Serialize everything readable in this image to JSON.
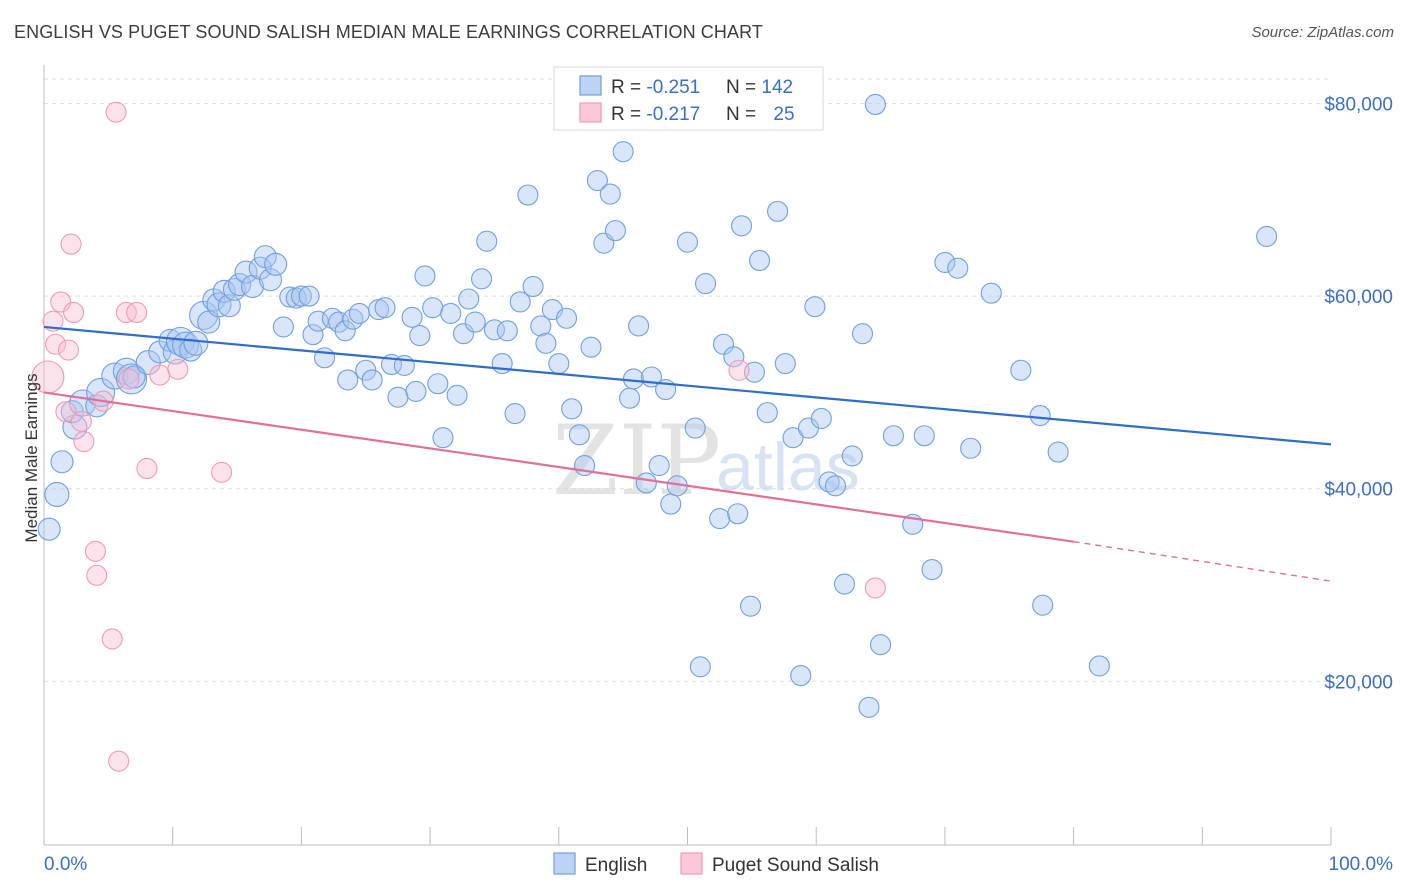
{
  "title": "ENGLISH VS PUGET SOUND SALISH MEDIAN MALE EARNINGS CORRELATION CHART",
  "source": "Source: ZipAtlas.com",
  "watermark": {
    "zip": "ZIP",
    "atlas": "atlas"
  },
  "colors": {
    "english": "#6fa0e0",
    "english_line": "#2f6ccc",
    "salish": "#f19ab7",
    "salish_line": "#e0709a",
    "label": "#3a6fc4"
  },
  "stats": {
    "english": {
      "r_label": "R = ",
      "r": "-0.251",
      "n_label": "N = ",
      "n": "142"
    },
    "salish": {
      "r_label": "R = ",
      "r": "-0.217",
      "n_label": "N = ",
      "n": "25"
    }
  },
  "chart_data": {
    "type": "scatter",
    "ylabel": "Median Male Earnings",
    "xlim": [
      0,
      100
    ],
    "ylim": [
      3000,
      84000
    ],
    "x_tick_labels": [
      "0.0%",
      "100.0%"
    ],
    "y_ticks": [
      {
        "value": 20000,
        "label": "$20,000"
      },
      {
        "value": 40000,
        "label": "$40,000"
      },
      {
        "value": 60000,
        "label": "$60,000"
      },
      {
        "value": 80000,
        "label": "$80,000"
      }
    ],
    "grid": true,
    "legend_position": "bottom-center",
    "series": [
      {
        "name": "English",
        "trend": {
          "x": [
            0,
            100
          ],
          "y": [
            56800,
            44600
          ]
        },
        "points": [
          [
            0.4,
            35800,
            11
          ],
          [
            1.0,
            39400,
            12
          ],
          [
            1.4,
            42800,
            11
          ],
          [
            2.4,
            46400,
            12
          ],
          [
            2.2,
            48000,
            11
          ],
          [
            3.0,
            48900,
            13
          ],
          [
            4.1,
            48600,
            11
          ],
          [
            4.4,
            50000,
            14
          ],
          [
            5.5,
            51700,
            13
          ],
          [
            6.4,
            52200,
            13
          ],
          [
            6.8,
            51400,
            15
          ],
          [
            7.0,
            51600,
            11
          ],
          [
            8.1,
            53100,
            12
          ],
          [
            9.0,
            54200,
            11
          ],
          [
            9.8,
            55400,
            11
          ],
          [
            10.2,
            54200,
            12
          ],
          [
            10.6,
            55300,
            14
          ],
          [
            11.0,
            54900,
            13
          ],
          [
            11.4,
            54400,
            11
          ],
          [
            11.8,
            55100,
            12
          ],
          [
            12.4,
            58000,
            14
          ],
          [
            12.8,
            57300,
            11
          ],
          [
            13.2,
            59600,
            11
          ],
          [
            13.6,
            59100,
            12
          ],
          [
            14.0,
            60500,
            11
          ],
          [
            14.4,
            59000,
            11
          ],
          [
            14.8,
            60700,
            11
          ],
          [
            15.2,
            61200,
            11
          ],
          [
            15.7,
            62500,
            11
          ],
          [
            16.2,
            61000,
            11
          ],
          [
            16.8,
            62900,
            11
          ],
          [
            17.2,
            64100,
            11
          ],
          [
            17.6,
            61700,
            11
          ],
          [
            18.0,
            63300,
            11
          ],
          [
            18.6,
            56800,
            10
          ],
          [
            19.1,
            59900,
            10
          ],
          [
            19.6,
            59800,
            10
          ],
          [
            20.0,
            60000,
            10
          ],
          [
            20.6,
            60000,
            10
          ],
          [
            20.9,
            56000,
            10
          ],
          [
            21.3,
            57400,
            10
          ],
          [
            21.8,
            53600,
            10
          ],
          [
            22.4,
            57700,
            10
          ],
          [
            22.9,
            57300,
            10
          ],
          [
            23.4,
            56400,
            10
          ],
          [
            23.6,
            51300,
            10
          ],
          [
            24.0,
            57600,
            10
          ],
          [
            24.5,
            58200,
            10
          ],
          [
            25.0,
            52300,
            10
          ],
          [
            25.5,
            51300,
            10
          ],
          [
            26.0,
            58600,
            10
          ],
          [
            26.5,
            58800,
            10
          ],
          [
            27.0,
            52900,
            10
          ],
          [
            27.5,
            49500,
            10
          ],
          [
            28.0,
            52800,
            10
          ],
          [
            28.6,
            57800,
            10
          ],
          [
            28.9,
            50100,
            10
          ],
          [
            29.2,
            55900,
            10
          ],
          [
            29.6,
            62100,
            10
          ],
          [
            30.2,
            58800,
            10
          ],
          [
            30.6,
            50900,
            10
          ],
          [
            31.0,
            45300,
            10
          ],
          [
            31.6,
            58200,
            10
          ],
          [
            32.1,
            49700,
            10
          ],
          [
            32.6,
            56100,
            10
          ],
          [
            33.0,
            59700,
            10
          ],
          [
            33.5,
            57300,
            10
          ],
          [
            34.0,
            61800,
            10
          ],
          [
            34.4,
            65700,
            10
          ],
          [
            35.0,
            56500,
            10
          ],
          [
            35.6,
            53000,
            10
          ],
          [
            36.0,
            56400,
            10
          ],
          [
            36.6,
            47800,
            10
          ],
          [
            37.0,
            59400,
            10
          ],
          [
            37.6,
            70500,
            10
          ],
          [
            38.0,
            61000,
            10
          ],
          [
            38.6,
            56900,
            10
          ],
          [
            39.0,
            55100,
            10
          ],
          [
            39.5,
            58600,
            10
          ],
          [
            40.0,
            53000,
            10
          ],
          [
            40.6,
            57700,
            10
          ],
          [
            41.0,
            48300,
            10
          ],
          [
            41.6,
            45600,
            10
          ],
          [
            42.0,
            42400,
            10
          ],
          [
            42.5,
            54700,
            10
          ],
          [
            43.0,
            72000,
            10
          ],
          [
            43.5,
            65500,
            10
          ],
          [
            44.0,
            70600,
            10
          ],
          [
            44.4,
            66800,
            10
          ],
          [
            45.0,
            75000,
            10
          ],
          [
            45.5,
            49400,
            10
          ],
          [
            45.8,
            51400,
            10
          ],
          [
            46.2,
            56900,
            10
          ],
          [
            46.8,
            40600,
            10
          ],
          [
            47.2,
            51600,
            10
          ],
          [
            47.8,
            42400,
            10
          ],
          [
            48.3,
            50300,
            10
          ],
          [
            48.7,
            38400,
            10
          ],
          [
            49.2,
            40300,
            10
          ],
          [
            50.0,
            65600,
            10
          ],
          [
            50.6,
            46300,
            10
          ],
          [
            51.0,
            21500,
            10
          ],
          [
            51.4,
            61300,
            10
          ],
          [
            52.5,
            36900,
            10
          ],
          [
            52.8,
            55000,
            10
          ],
          [
            53.6,
            53700,
            10
          ],
          [
            53.9,
            37400,
            10
          ],
          [
            54.2,
            67300,
            10
          ],
          [
            54.9,
            27800,
            10
          ],
          [
            55.2,
            52100,
            10
          ],
          [
            55.6,
            63700,
            10
          ],
          [
            56.2,
            47900,
            10
          ],
          [
            57.0,
            68800,
            10
          ],
          [
            57.6,
            53000,
            10
          ],
          [
            58.2,
            45300,
            10
          ],
          [
            58.8,
            20600,
            10
          ],
          [
            59.4,
            46300,
            10
          ],
          [
            59.9,
            58900,
            10
          ],
          [
            60.4,
            47300,
            10
          ],
          [
            61.0,
            40700,
            10
          ],
          [
            61.5,
            40300,
            10
          ],
          [
            62.2,
            30100,
            10
          ],
          [
            62.8,
            43400,
            10
          ],
          [
            63.6,
            56100,
            10
          ],
          [
            64.1,
            17300,
            10
          ],
          [
            64.6,
            79900,
            10
          ],
          [
            65.0,
            23800,
            10
          ],
          [
            66.0,
            45500,
            10
          ],
          [
            67.5,
            36300,
            10
          ],
          [
            68.4,
            45500,
            10
          ],
          [
            69.0,
            31600,
            10
          ],
          [
            70.0,
            63500,
            10
          ],
          [
            71.0,
            62900,
            10
          ],
          [
            72.0,
            44200,
            10
          ],
          [
            73.6,
            60300,
            10
          ],
          [
            75.9,
            52300,
            10
          ],
          [
            77.4,
            47600,
            10
          ],
          [
            77.6,
            27900,
            10
          ],
          [
            78.8,
            43800,
            10
          ],
          [
            82.0,
            21600,
            10
          ],
          [
            95.0,
            66200,
            10
          ]
        ]
      },
      {
        "name": "Puget Sound Salish",
        "trend": {
          "x": [
            0,
            80
          ],
          "y": [
            50000,
            34500
          ]
        },
        "trend_dashed": {
          "x": [
            80,
            100
          ],
          "y": [
            34500,
            30400
          ]
        },
        "points": [
          [
            0.3,
            51600,
            16
          ],
          [
            0.7,
            57400,
            10
          ],
          [
            0.9,
            55000,
            10
          ],
          [
            1.3,
            59400,
            10
          ],
          [
            1.7,
            48000,
            10
          ],
          [
            1.9,
            54400,
            10
          ],
          [
            2.1,
            65400,
            10
          ],
          [
            2.3,
            58300,
            10
          ],
          [
            2.9,
            47000,
            10
          ],
          [
            3.1,
            44900,
            10
          ],
          [
            4.0,
            33500,
            10
          ],
          [
            4.1,
            31000,
            10
          ],
          [
            4.6,
            49100,
            10
          ],
          [
            5.3,
            24400,
            10
          ],
          [
            5.6,
            79100,
            10
          ],
          [
            5.8,
            11700,
            10
          ],
          [
            6.4,
            58300,
            10
          ],
          [
            6.6,
            51400,
            10
          ],
          [
            7.2,
            58300,
            10
          ],
          [
            8.0,
            42100,
            10
          ],
          [
            9.0,
            51800,
            10
          ],
          [
            10.4,
            52400,
            10
          ],
          [
            13.8,
            41700,
            10
          ],
          [
            54.0,
            52300,
            10
          ],
          [
            64.6,
            29700,
            10
          ]
        ]
      }
    ]
  }
}
